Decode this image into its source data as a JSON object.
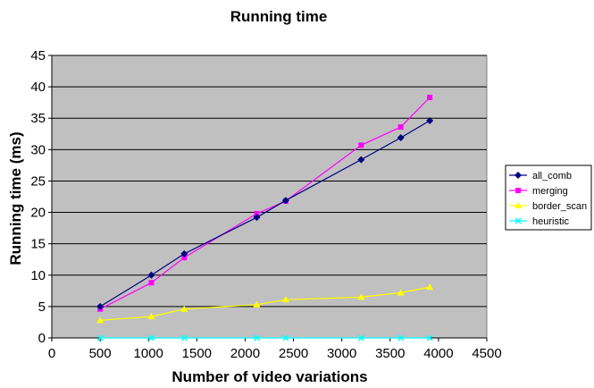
{
  "chart_data": {
    "type": "line",
    "title": "Running time",
    "xlabel": "Number of video variations",
    "ylabel": "Running time (ms)",
    "xlim": [
      0,
      4500
    ],
    "ylim": [
      0,
      45
    ],
    "xticks": [
      "0",
      "500",
      "1000",
      "1500",
      "2000",
      "2500",
      "3000",
      "3500",
      "4000",
      "4500"
    ],
    "yticks": [
      "0",
      "5",
      "10",
      "15",
      "20",
      "25",
      "30",
      "35",
      "40",
      "45"
    ],
    "grid": "horizontal",
    "plot_background": "#c0c0c0",
    "legend_position": "right",
    "x": [
      500,
      1030,
      1370,
      2120,
      2420,
      3200,
      3610,
      3910
    ],
    "series": [
      {
        "name": "all_comb",
        "color": "#000080",
        "marker": "diamond",
        "values": [
          5.0,
          10.0,
          13.4,
          19.2,
          21.9,
          28.4,
          31.9,
          34.6
        ]
      },
      {
        "name": "merging",
        "color": "#ff00ff",
        "marker": "square",
        "values": [
          4.6,
          8.8,
          12.8,
          19.8,
          21.8,
          30.7,
          33.6,
          38.3
        ]
      },
      {
        "name": "border_scan",
        "color": "#ffff00",
        "marker": "triangle",
        "values": [
          2.8,
          3.4,
          4.6,
          5.3,
          6.1,
          6.5,
          7.2,
          8.1
        ]
      },
      {
        "name": "heuristic",
        "color": "#00ffff",
        "marker": "x",
        "values": [
          0.0,
          0.0,
          0.0,
          0.0,
          0.0,
          0.0,
          0.0,
          0.0
        ]
      }
    ]
  }
}
